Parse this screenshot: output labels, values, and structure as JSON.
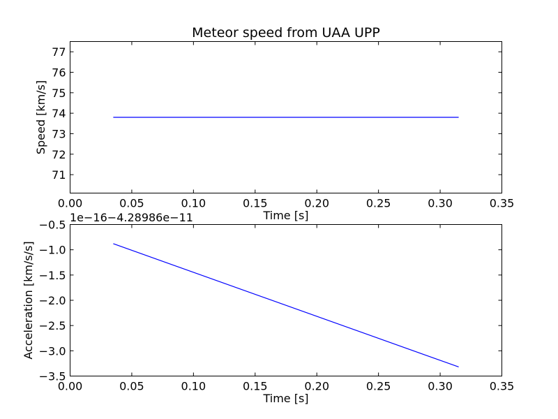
{
  "chart_data": [
    {
      "type": "line",
      "title": "Meteor speed from  UAA UPP",
      "xlabel": "Time [s]",
      "ylabel": "Speed [km/s]",
      "xlim": [
        0.0,
        0.35
      ],
      "ylim": [
        70.1,
        77.5
      ],
      "x_ticks": [
        0.0,
        0.05,
        0.1,
        0.15,
        0.2,
        0.25,
        0.3,
        0.35
      ],
      "x_tick_labels": [
        "0.00",
        "0.05",
        "0.10",
        "0.15",
        "0.20",
        "0.25",
        "0.30",
        "0.35"
      ],
      "y_ticks": [
        71,
        72,
        73,
        74,
        75,
        76,
        77
      ],
      "y_tick_labels": [
        "71",
        "72",
        "73",
        "74",
        "75",
        "76",
        "77"
      ],
      "grid": false,
      "series": [
        {
          "x": [
            0.035,
            0.315
          ],
          "y": [
            73.8,
            73.8
          ],
          "color": "#0000ff"
        }
      ]
    },
    {
      "type": "line",
      "title": "",
      "offset_text": "1e−16−4.28986e−11",
      "xlabel": "Time [s]",
      "ylabel": "Acceleration [km/s/s]",
      "xlim": [
        0.0,
        0.35
      ],
      "ylim": [
        -3.5,
        -0.5
      ],
      "x_ticks": [
        0.0,
        0.05,
        0.1,
        0.15,
        0.2,
        0.25,
        0.3,
        0.35
      ],
      "x_tick_labels": [
        "0.00",
        "0.05",
        "0.10",
        "0.15",
        "0.20",
        "0.25",
        "0.30",
        "0.35"
      ],
      "y_ticks": [
        -3.5,
        -3.0,
        -2.5,
        -2.0,
        -1.5,
        -1.0,
        -0.5
      ],
      "y_tick_labels": [
        "−3.5",
        "−3.0",
        "−2.5",
        "−2.0",
        "−1.5",
        "−1.0",
        "−0.5"
      ],
      "grid": false,
      "series": [
        {
          "x": [
            0.035,
            0.315
          ],
          "y": [
            -0.88,
            -3.32
          ],
          "color": "#0000ff"
        }
      ]
    }
  ]
}
